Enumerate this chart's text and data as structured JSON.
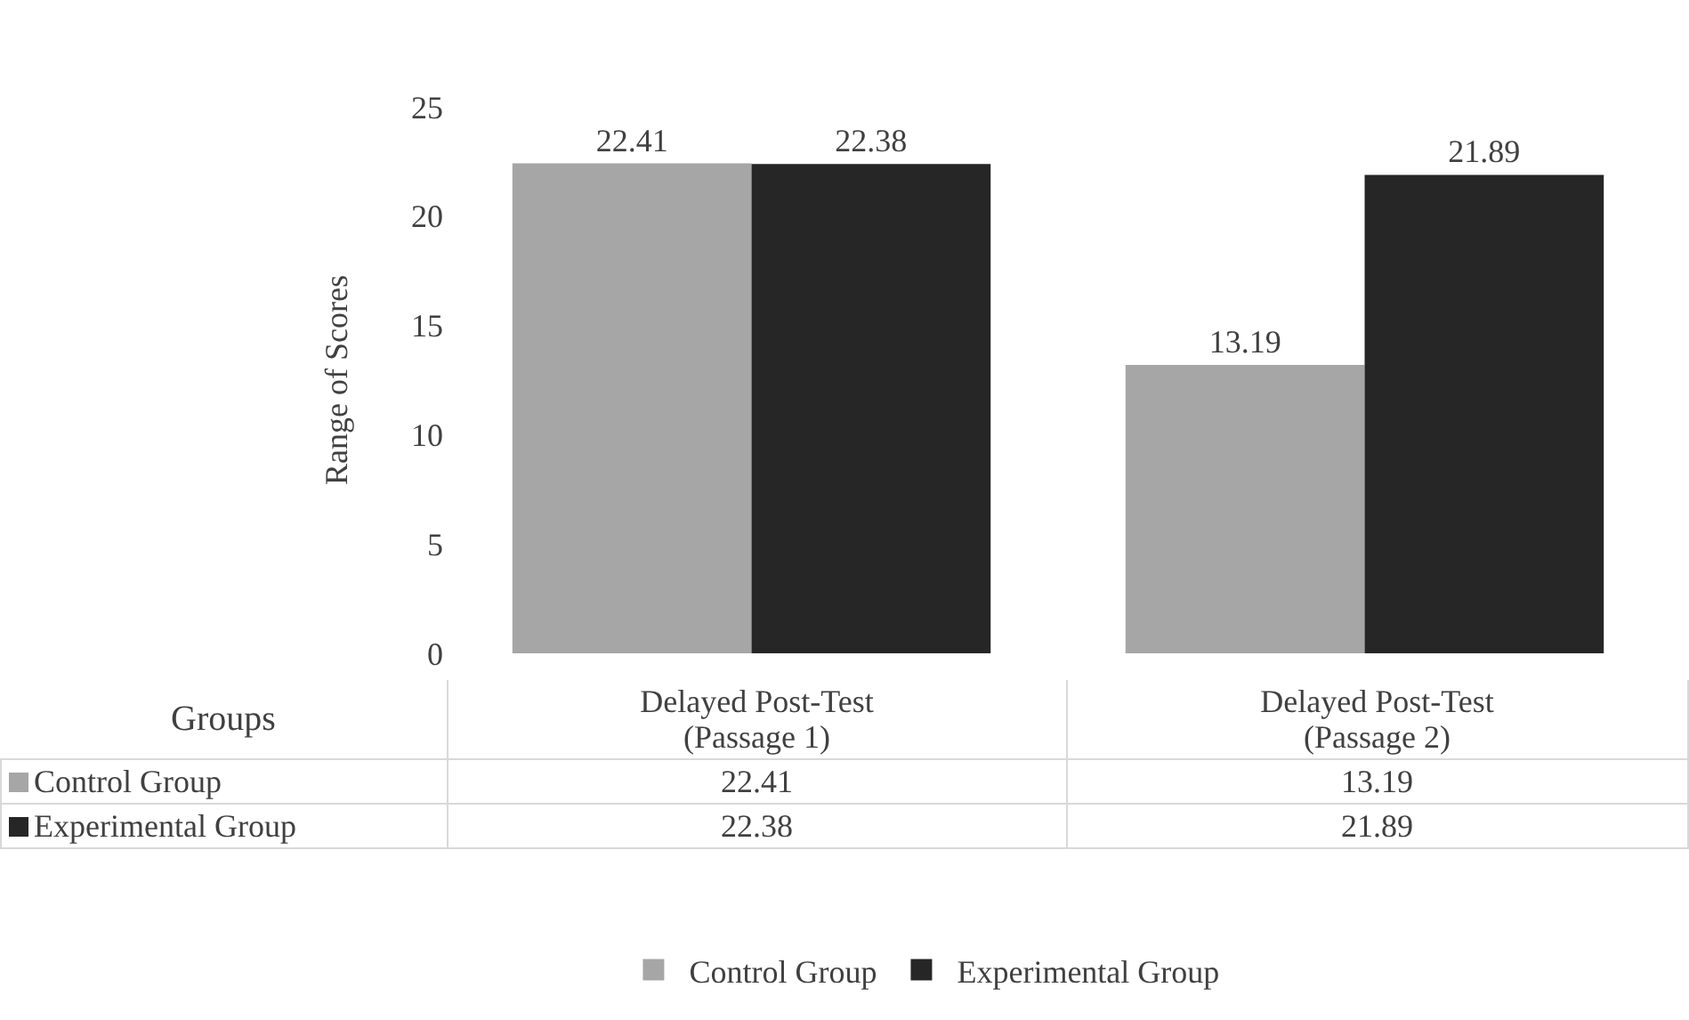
{
  "chart_data": {
    "type": "bar",
    "ylabel": "Range of Scores",
    "legend_title": "Groups",
    "categories": [
      "Delayed Post-Test\n(Passage 1)",
      "Delayed Post-Test\n(Passage 2)"
    ],
    "series": [
      {
        "name": "Control Group",
        "color": "#a6a6a6",
        "values": [
          22.41,
          13.19
        ],
        "value_labels": [
          "22.41",
          "13.19"
        ]
      },
      {
        "name": "Experimental Group",
        "color": "#262626",
        "values": [
          22.38,
          21.89
        ],
        "value_labels": [
          "22.38",
          "21.89"
        ]
      }
    ],
    "ylim": [
      0,
      25
    ],
    "yticks": [
      0,
      5,
      10,
      15,
      20,
      25
    ],
    "grid": false,
    "legend": "bottom",
    "annotations": [
      "22.41",
      "13.19",
      "22.38",
      "21.89"
    ]
  }
}
